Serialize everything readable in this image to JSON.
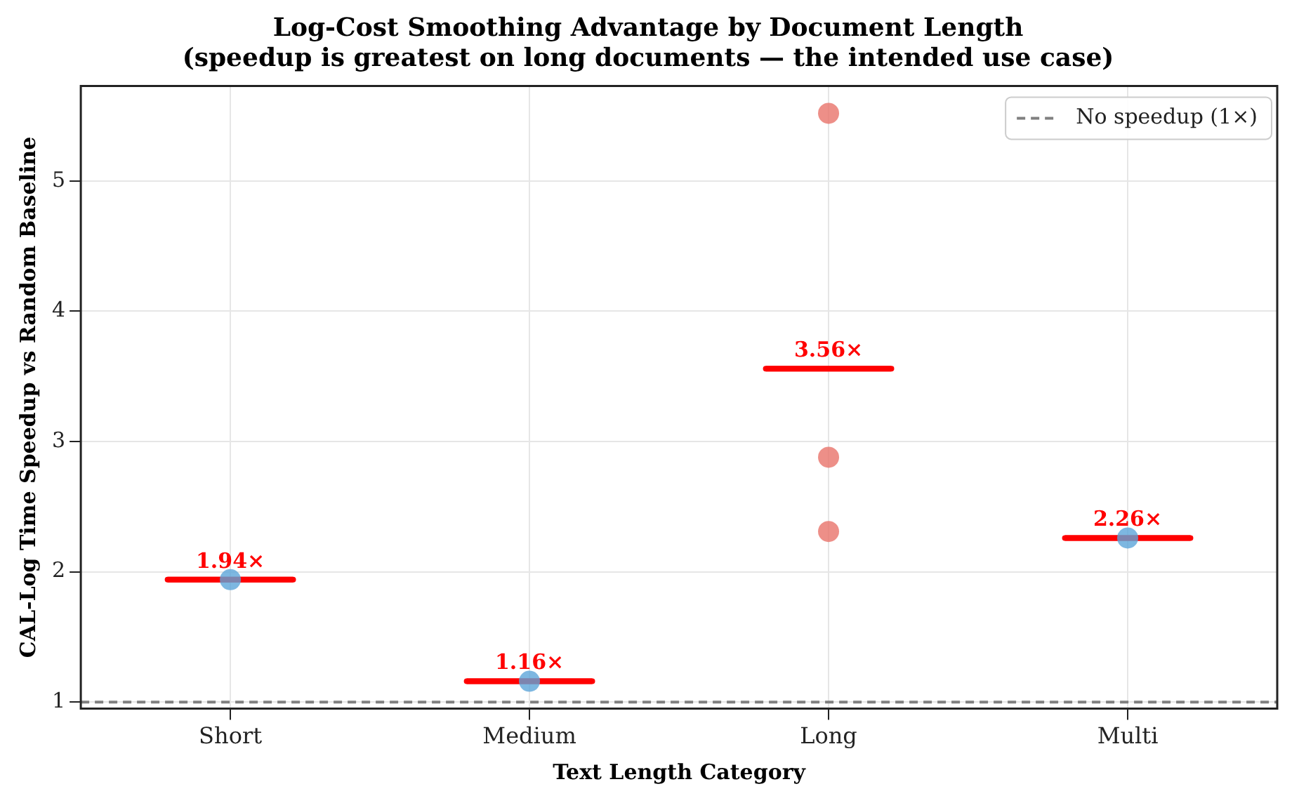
{
  "chart_data": {
    "type": "scatter",
    "title": "Log-Cost Smoothing Advantage by Document Length",
    "subtitle": "(speedup is greatest on long documents — the intended use case)",
    "xlabel": "Text Length Category",
    "ylabel": "CAL-Log Time Speedup vs Random Baseline",
    "categories": [
      "Short",
      "Medium",
      "Long",
      "Multi"
    ],
    "series": [
      {
        "x": [
          "Short",
          "Medium",
          "Long",
          "Long",
          "Long",
          "Multi"
        ],
        "values": [
          1.94,
          1.16,
          5.52,
          2.88,
          2.31,
          2.26
        ],
        "colors": [
          "#5da5da",
          "#5da5da",
          "#e8736a",
          "#e8736a",
          "#e8736a",
          "#5da5da"
        ],
        "marker": "circle"
      },
      {
        "type": "box",
        "color": "#ff0000",
        "boxes": [
          {
            "low": 1.94,
            "q1": 1.94,
            "median": 1.94,
            "q3": 1.94,
            "high": 1.94
          },
          {
            "low": 1.16,
            "q1": 1.16,
            "median": 1.16,
            "q3": 1.16,
            "high": 1.16
          },
          {
            "low": 3.56,
            "q1": 3.56,
            "median": 3.56,
            "q3": 3.56,
            "high": 3.56
          },
          {
            "low": 2.26,
            "q1": 2.26,
            "median": 2.26,
            "q3": 2.26,
            "high": 2.26
          }
        ]
      }
    ],
    "annotations": [
      {
        "text": "1.94×",
        "x": "Short",
        "y": 1.94
      },
      {
        "text": "1.16×",
        "x": "Medium",
        "y": 1.16
      },
      {
        "text": "3.56×",
        "x": "Long",
        "y": 3.56
      },
      {
        "text": "2.26×",
        "x": "Multi",
        "y": 2.26
      }
    ],
    "ylim": [
      0.95,
      5.73
    ],
    "yticks": [
      1,
      2,
      3,
      4,
      5
    ],
    "grid": true,
    "legend": "top right",
    "ref_lines": [
      {
        "axis": "y",
        "value": 1,
        "label": "No speedup (1×)",
        "color": "#808080",
        "line_style": "dashed"
      }
    ]
  }
}
